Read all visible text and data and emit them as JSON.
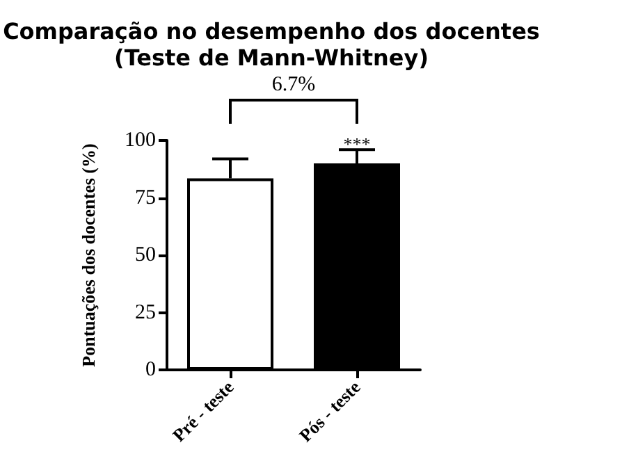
{
  "chart_data": {
    "type": "bar",
    "title": "Comparação no desempenho dos docentes\n(Teste de Mann-Whitney)",
    "ylabel": "Pontuações dos docentes (%)",
    "categories": [
      "Pré - teste",
      "Pós - teste"
    ],
    "values": [
      83.5,
      90
    ],
    "colors": [
      "#ffffff",
      "#000000"
    ],
    "errors": [
      [
        83.5,
        92
      ],
      [
        90,
        96
      ]
    ],
    "ylim": [
      0,
      100
    ],
    "yticks": [
      0,
      25,
      50,
      75,
      100
    ],
    "grid": false,
    "annotations": [
      "6.7%",
      {
        "text": "***",
        "x": "Pós - teste",
        "y": 97
      }
    ]
  }
}
